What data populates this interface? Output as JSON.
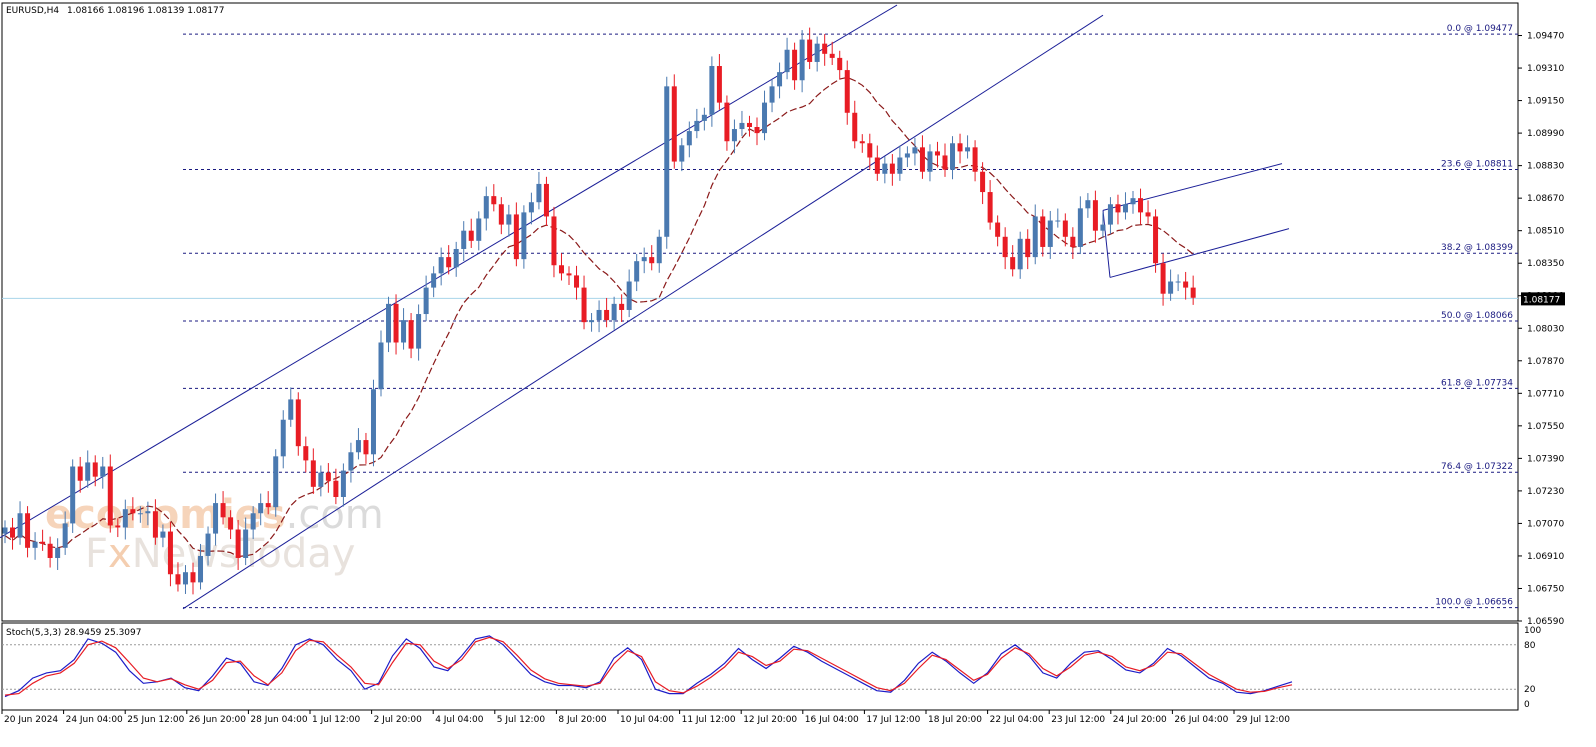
{
  "window": {
    "symbol_header": "EURUSD,H4",
    "ohlc_header": "1.08166 1.08196 1.08139 1.08177"
  },
  "watermark": {
    "line1_brand": "economies",
    "line1_suffix": ".com",
    "line2_a": "F",
    "line2_x": "x",
    "line2_b": "NewsToday"
  },
  "chart_data": [
    {
      "type": "candlestick",
      "title": "EURUSD,H4",
      "colors": {
        "bull": "#4a79b0",
        "bear": "#e81c24",
        "ma": "#8b1a1a",
        "fib": "#1a1a80",
        "channel": "#1c2098",
        "current_line": "#a8d4ea"
      },
      "ylim": [
        1.0659,
        1.0963
      ],
      "y_ticks": [
        "1.09470",
        "1.09310",
        "1.09150",
        "1.08990",
        "1.08830",
        "1.08670",
        "1.08510",
        "1.08350",
        "1.08190",
        "1.08030",
        "1.07870",
        "1.07710",
        "1.07550",
        "1.07390",
        "1.07230",
        "1.07070",
        "1.06910",
        "1.06750",
        "1.06590"
      ],
      "x_ticks": [
        "20 Jun 2024",
        "24 Jun 04:00",
        "25 Jun 12:00",
        "26 Jun 20:00",
        "28 Jun 04:00",
        "1 Jul 12:00",
        "2 Jul 20:00",
        "4 Jul 04:00",
        "5 Jul 12:00",
        "8 Jul 20:00",
        "10 Jul 04:00",
        "11 Jul 12:00",
        "12 Jul 20:00",
        "16 Jul 04:00",
        "17 Jul 12:00",
        "18 Jul 20:00",
        "22 Jul 04:00",
        "23 Jul 12:00",
        "24 Jul 20:00",
        "26 Jul 04:00",
        "29 Jul 12:00"
      ],
      "current_price": "1.08177",
      "fibonacci": [
        {
          "label": "0.0 @ 1.09477",
          "price": 1.09477
        },
        {
          "label": "23.6 @ 1.08811",
          "price": 1.08811
        },
        {
          "label": "38.2 @ 1.08399",
          "price": 1.08399
        },
        {
          "label": "50.0 @ 1.08066",
          "price": 1.08066
        },
        {
          "label": "61.8 @ 1.07734",
          "price": 1.07734
        },
        {
          "label": "76.4 @ 1.07322",
          "price": 1.07322
        },
        {
          "label": "100.0 @ 1.06656",
          "price": 1.06656
        }
      ],
      "closes": [
        1.0705,
        1.07,
        1.0712,
        1.0695,
        1.0698,
        1.0697,
        1.069,
        1.0695,
        1.0707,
        1.0735,
        1.0728,
        1.0737,
        1.073,
        1.0735,
        1.0706,
        1.0705,
        1.0714,
        1.0712,
        1.0712,
        1.0713,
        1.07,
        1.0703,
        1.0682,
        1.0677,
        1.0683,
        1.0678,
        1.0691,
        1.0702,
        1.0717,
        1.071,
        1.0704,
        1.069,
        1.0704,
        1.0712,
        1.0717,
        1.0715,
        1.074,
        1.0758,
        1.0768,
        1.0745,
        1.0738,
        1.0725,
        1.0732,
        1.0728,
        1.072,
        1.0733,
        1.0742,
        1.0748,
        1.0741,
        1.0773,
        1.0796,
        1.0815,
        1.0796,
        1.0807,
        1.0793,
        1.081,
        1.0823,
        1.083,
        1.0838,
        1.0833,
        1.0842,
        1.0851,
        1.0846,
        1.0857,
        1.0868,
        1.0864,
        1.0854,
        1.0859,
        1.0837,
        1.086,
        1.0865,
        1.0874,
        1.0858,
        1.0834,
        1.083,
        1.0829,
        1.0823,
        1.0806,
        1.0807,
        1.0812,
        1.0807,
        1.0815,
        1.0812,
        1.0826,
        1.0836,
        1.0838,
        1.0835,
        1.0848,
        1.0922,
        1.0885,
        1.0893,
        1.09,
        1.0905,
        1.0908,
        1.0932,
        1.0914,
        1.0895,
        1.0901,
        1.0904,
        1.0902,
        1.0899,
        1.0914,
        1.0922,
        1.0929,
        1.094,
        1.0925,
        1.0945,
        1.0934,
        1.0943,
        1.0938,
        1.0936,
        1.093,
        1.0909,
        1.0895,
        1.0894,
        1.0887,
        1.0879,
        1.0884,
        1.0879,
        1.0887,
        1.0889,
        1.0892,
        1.088,
        1.089,
        1.0888,
        1.0881,
        1.0894,
        1.089,
        1.0892,
        1.088,
        1.087,
        1.0855,
        1.0848,
        1.0838,
        1.0832,
        1.0847,
        1.0838,
        1.0858,
        1.0843,
        1.0856,
        1.0856,
        1.0848,
        1.0843,
        1.0862,
        1.0866,
        1.0851,
        1.0854,
        1.0864,
        1.086,
        1.0864,
        1.0867,
        1.086,
        1.0858,
        1.0835,
        1.082,
        1.0826,
        1.0826,
        1.0823,
        1.0818
      ],
      "ma_series_name": "",
      "channel": "ascending channel from 26 Jun to 17 Jul",
      "pattern": "rising wedge 23 Jul - 29 Jul"
    },
    {
      "type": "line",
      "title": "Stoch(5,3,3) 28.9459 25.3097",
      "ylim": [
        0,
        100
      ],
      "y_ticks": [
        "100",
        "80",
        "20",
        "0"
      ],
      "levels": [
        80,
        20
      ],
      "series": [
        {
          "name": "",
          "color": "#1c1cc8",
          "values": [
            10,
            18,
            35,
            42,
            45,
            60,
            88,
            82,
            70,
            45,
            28,
            30,
            35,
            22,
            18,
            38,
            62,
            55,
            30,
            25,
            48,
            80,
            88,
            80,
            60,
            45,
            20,
            28,
            65,
            88,
            75,
            50,
            45,
            65,
            88,
            92,
            80,
            60,
            40,
            30,
            25,
            25,
            22,
            30,
            62,
            76,
            60,
            20,
            14,
            14,
            28,
            40,
            55,
            75,
            60,
            48,
            62,
            78,
            70,
            58,
            48,
            38,
            28,
            18,
            16,
            32,
            55,
            70,
            58,
            42,
            28,
            42,
            68,
            80,
            65,
            42,
            35,
            55,
            70,
            72,
            60,
            46,
            42,
            55,
            75,
            65,
            50,
            35,
            28,
            16,
            14,
            18,
            24,
            30
          ]
        },
        {
          "name": "",
          "color": "#e81c24",
          "values": [
            12,
            14,
            28,
            38,
            42,
            55,
            80,
            85,
            76,
            56,
            35,
            30,
            34,
            26,
            20,
            32,
            56,
            58,
            38,
            26,
            42,
            72,
            86,
            84,
            66,
            50,
            28,
            26,
            56,
            82,
            80,
            58,
            48,
            60,
            84,
            90,
            84,
            66,
            46,
            34,
            28,
            26,
            24,
            28,
            54,
            72,
            64,
            30,
            18,
            15,
            24,
            36,
            50,
            70,
            64,
            52,
            58,
            74,
            72,
            62,
            52,
            42,
            32,
            22,
            18,
            28,
            48,
            66,
            60,
            46,
            32,
            40,
            62,
            76,
            68,
            48,
            38,
            50,
            66,
            70,
            64,
            50,
            45,
            52,
            70,
            68,
            54,
            40,
            30,
            20,
            16,
            17,
            22,
            26
          ]
        }
      ]
    }
  ]
}
